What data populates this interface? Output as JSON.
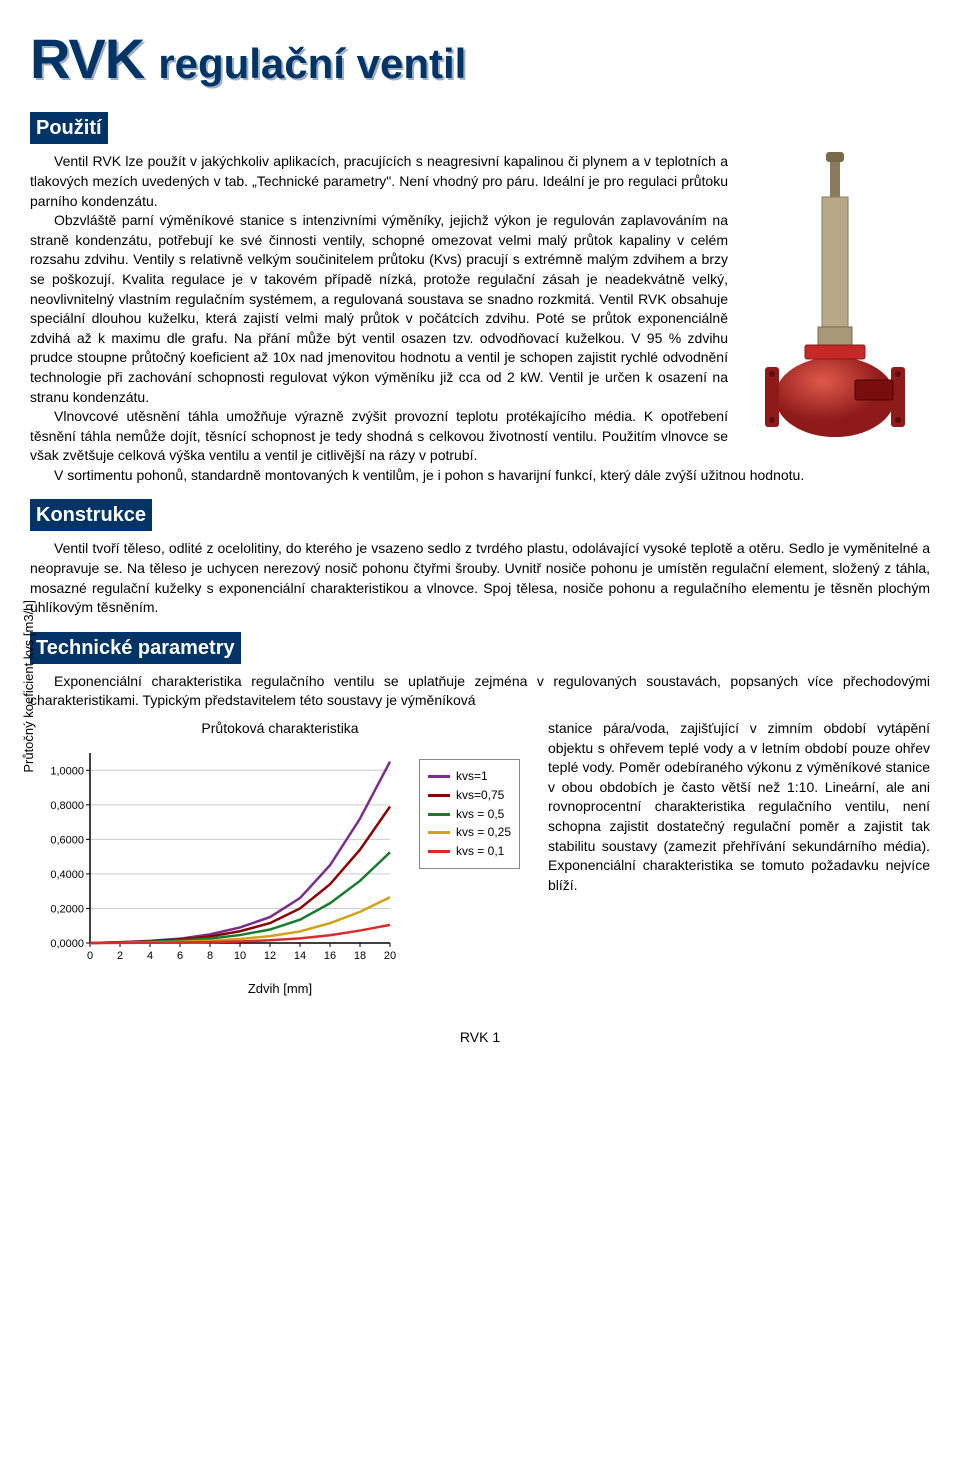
{
  "title": {
    "rvk": "RVK",
    "subtitle": "regulační ventil"
  },
  "sections": {
    "use": "Použití",
    "construction": "Konstrukce",
    "tech": "Technické parametry"
  },
  "body": {
    "use_p1": "Ventil RVK lze použít v jakýchkoliv aplikacích, pracujících s neagresivní kapalinou či plynem a v teplotních a tlakových mezích uvedených v tab. „Technické parametry\". Není vhodný pro páru. Ideální je pro regulaci průtoku parního kondenzátu.",
    "use_p2": "Obzvláště parní výměníkové stanice s intenzivními výměníky, jejichž výkon je regulován zaplavováním na straně kondenzátu, potřebují ke své činnosti ventily, schopné omezovat velmi malý průtok kapaliny v celém rozsahu zdvihu. Ventily s relativně velkým součinitelem průtoku (Kvs) pracují s extrémně malým zdvihem a brzy se poškozují. Kvalita regulace je v takovém případě nízká, protože regulační zásah je neadekvátně velký, neovlivnitelný vlastním regulačním systémem, a regulovaná soustava se snadno rozkmitá. Ventil RVK obsahuje speciální dlouhou kuželku, která zajistí velmi malý průtok v počátcích zdvihu. Poté se průtok exponenciálně zdvihá až k maximu dle grafu. Na přání může být ventil osazen tzv. odvodňovací kuželkou. V 95 % zdvihu prudce stoupne průtočný koeficient až 10x nad jmenovitou hodnotu a ventil je schopen zajistit rychlé odvodnění technologie při zachování schopnosti regulovat výkon výměníku již cca od 2 kW. Ventil je určen k osazení na stranu kondenzátu.",
    "use_p3": "Vlnovcové utěsnění táhla umožňuje výrazně zvýšit provozní teplotu protékajícího média. K opotřebení těsnění táhla nemůže dojít, těsnící schopnost je tedy shodná s celkovou životností ventilu. Použitím vlnovce se však zvětšuje celková výška ventilu a ventil je citlivější na rázy v potrubí.",
    "use_p4": "V sortimentu pohonů, standardně montovaných k ventilům, je i pohon s havarijní funkcí, který dále zvýší užitnou hodnotu.",
    "constr_p1": "Ventil tvoří těleso, odlité z ocelolitiny, do kterého je vsazeno sedlo z tvrdého plastu, odolávající vysoké teplotě a otěru. Sedlo je vyměnitelné a neopravuje se. Na těleso je uchycen nerezový nosič pohonu čtyřmi šrouby. Uvnitř nosiče pohonu je umístěn regulační element, složený z táhla, mosazné regulační kuželky s exponenciální charakteristikou a vlnovce. Spoj tělesa, nosiče pohonu a regulačního elementu je těsněn plochým uhlíkovým těsněním.",
    "tech_p1": "Exponenciální charakteristika regulačního ventilu se uplatňuje zejména v regulovaných soustavách, popsaných více přechodovými charakteristikami. Typickým představitelem této soustavy je výměníková stanice pára/voda, zajišťující v zimním období vytápění objektu s ohřevem teplé vody a v letním období pouze ohřev teplé vody. Poměr odebíraného výkonu z výměníkové stanice v obou obdobích je často větší než 1:10. Lineární, ale ani rovnoprocentní charakteristika regulačního ventilu, není schopna zajistit dostatečný regulační poměr a zajistit tak stabilitu soustavy (zamezit přehřívání sekundárního média). Exponenciální charakteristika se tomuto požadavku nejvíce blíží.",
    "tech_side": "stanice pára/voda, zajišťující v zimním období vytápění objektu s ohřevem teplé vody a v letním období pouze ohřev teplé vody. Poměr odebíraného výkonu z výměníkové stanice v obou obdobích je často větší než 1:10.  Lineární, ale ani rovnoprocentní charakteristika regulačního ventilu, není schopna zajistit dostatečný regulační poměr a zajistit tak stabilitu soustavy (zamezit přehřívání sekundárního média). Exponenciální charakteristika se tomuto požadavku nejvíce blíží.",
    "tech_pre": "Exponenciální charakteristika regulačního ventilu se uplatňuje zejména v regulovaných soustavách, popsaných více přechodovými charakteristikami. Typickým představitelem této soustavy je výměníková"
  },
  "chart": {
    "title": "Průtoková charakteristika",
    "ylabel": "Průtočný koeficient kvs [m3/h]",
    "xlabel": "Zdvih [mm]",
    "x_ticks": [
      0,
      2,
      4,
      6,
      8,
      10,
      12,
      14,
      16,
      18,
      20
    ],
    "y_ticks": [
      "0,0000",
      "0,2000",
      "0,4000",
      "0,6000",
      "0,8000",
      "1,0000"
    ],
    "y_tick_values": [
      0.0,
      0.2,
      0.4,
      0.6,
      0.8,
      1.0
    ],
    "xlim": [
      0,
      20
    ],
    "ylim": [
      0,
      1.1
    ],
    "series": [
      {
        "label": "kvs=1",
        "color": "#7b2d8e",
        "x": [
          0,
          2,
          4,
          6,
          8,
          10,
          12,
          14,
          16,
          18,
          20
        ],
        "y": [
          0.0,
          0.005,
          0.012,
          0.025,
          0.05,
          0.09,
          0.15,
          0.26,
          0.45,
          0.72,
          1.05
        ]
      },
      {
        "label": "kvs=0,75",
        "color": "#8b0000",
        "x": [
          0,
          2,
          4,
          6,
          8,
          10,
          12,
          14,
          16,
          18,
          20
        ],
        "y": [
          0.0,
          0.004,
          0.01,
          0.02,
          0.038,
          0.068,
          0.115,
          0.2,
          0.34,
          0.54,
          0.79
        ]
      },
      {
        "label": "kvs = 0,5",
        "color": "#1a7a2e",
        "x": [
          0,
          2,
          4,
          6,
          8,
          10,
          12,
          14,
          16,
          18,
          20
        ],
        "y": [
          0.0,
          0.003,
          0.007,
          0.014,
          0.026,
          0.046,
          0.078,
          0.135,
          0.23,
          0.36,
          0.525
        ]
      },
      {
        "label": "kvs = 0,25",
        "color": "#d4a017",
        "x": [
          0,
          2,
          4,
          6,
          8,
          10,
          12,
          14,
          16,
          18,
          20
        ],
        "y": [
          0.0,
          0.0015,
          0.0035,
          0.007,
          0.013,
          0.023,
          0.04,
          0.067,
          0.115,
          0.18,
          0.265
        ]
      },
      {
        "label": "kvs = 0,1",
        "color": "#d92b2b",
        "x": [
          0,
          2,
          4,
          6,
          8,
          10,
          12,
          14,
          16,
          18,
          20
        ],
        "y": [
          0.0,
          0.0006,
          0.0014,
          0.003,
          0.005,
          0.009,
          0.016,
          0.027,
          0.045,
          0.072,
          0.105
        ]
      }
    ],
    "line_width": 2.5,
    "grid_color": "#cccccc",
    "axis_color": "#000000",
    "font_size_tick": 11,
    "font_size_label": 13
  },
  "footer": "RVK 1",
  "valve_colors": {
    "body": "#c62828",
    "body_dark": "#8e1a1a",
    "stem": "#8a7a5a",
    "metal": "#a89878"
  }
}
